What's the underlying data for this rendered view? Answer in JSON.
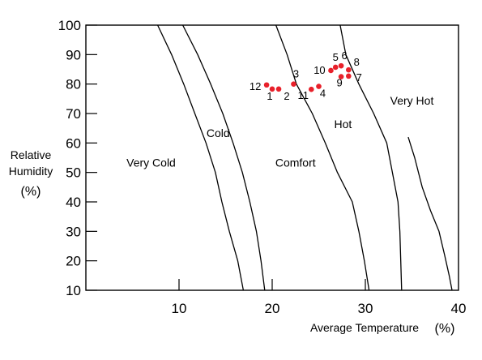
{
  "chart_data": {
    "type": "scatter",
    "xlabel": "Average Temperature",
    "xlabel_unit": "(%)",
    "ylabel_lines": [
      "Relative",
      "Humidity",
      "(%)"
    ],
    "xlim": [
      0,
      40
    ],
    "ylim": [
      10,
      100
    ],
    "x_ticks": [
      10,
      20,
      30,
      40
    ],
    "y_ticks": [
      10,
      20,
      30,
      40,
      50,
      60,
      70,
      80,
      90,
      100
    ],
    "grid": false,
    "points": [
      {
        "label": "1",
        "x": 20.0,
        "y": 78.3
      },
      {
        "label": "2",
        "x": 20.7,
        "y": 78.3
      },
      {
        "label": "3",
        "x": 22.3,
        "y": 80.0
      },
      {
        "label": "4",
        "x": 25.0,
        "y": 79.2
      },
      {
        "label": "5",
        "x": 26.8,
        "y": 85.7
      },
      {
        "label": "6",
        "x": 27.4,
        "y": 86.2
      },
      {
        "label": "7",
        "x": 28.2,
        "y": 82.7
      },
      {
        "label": "8",
        "x": 28.2,
        "y": 84.8
      },
      {
        "label": "9",
        "x": 27.4,
        "y": 82.5
      },
      {
        "label": "10",
        "x": 26.3,
        "y": 84.6
      },
      {
        "label": "11",
        "x": 24.2,
        "y": 78.2
      },
      {
        "label": "12",
        "x": 19.4,
        "y": 79.7
      }
    ],
    "point_color": "#e8202a",
    "boundaries": [
      {
        "name": "very-cold-cold",
        "points": [
          [
            7.7,
            100
          ],
          [
            9.2,
            90
          ],
          [
            10.5,
            80
          ],
          [
            11.7,
            70
          ],
          [
            12.9,
            60
          ],
          [
            13.9,
            50
          ],
          [
            14.6,
            40
          ],
          [
            15.4,
            30
          ],
          [
            16.3,
            20
          ],
          [
            16.9,
            10
          ]
        ]
      },
      {
        "name": "cold-comfort",
        "points": [
          [
            10.4,
            100
          ],
          [
            12.0,
            90
          ],
          [
            13.4,
            80
          ],
          [
            14.7,
            70
          ],
          [
            15.8,
            60
          ],
          [
            16.8,
            50
          ],
          [
            17.6,
            40
          ],
          [
            18.3,
            30
          ],
          [
            18.8,
            20
          ],
          [
            19.2,
            10
          ]
        ]
      },
      {
        "name": "comfort-hot",
        "points": [
          [
            20.4,
            100
          ],
          [
            21.6,
            90
          ],
          [
            22.6,
            80
          ],
          [
            24.3,
            70
          ],
          [
            25.7,
            60
          ],
          [
            27.0,
            50
          ],
          [
            28.6,
            40
          ],
          [
            29.3,
            30
          ],
          [
            29.9,
            20
          ],
          [
            30.4,
            10
          ]
        ]
      },
      {
        "name": "hot-very-hot",
        "points": [
          [
            27.3,
            100
          ],
          [
            27.9,
            90
          ],
          [
            29.3,
            80
          ],
          [
            30.9,
            70
          ],
          [
            32.3,
            60
          ],
          [
            32.9,
            50
          ],
          [
            33.5,
            40
          ],
          [
            33.7,
            30
          ],
          [
            33.8,
            20
          ],
          [
            33.9,
            10
          ]
        ]
      },
      {
        "name": "very-hot-edge",
        "points": [
          [
            34.6,
            62
          ],
          [
            35.3,
            55
          ],
          [
            36.1,
            45
          ],
          [
            37.0,
            37
          ],
          [
            37.9,
            30
          ],
          [
            38.5,
            22
          ],
          [
            39.0,
            15
          ],
          [
            39.3,
            10
          ]
        ]
      }
    ],
    "regions": [
      {
        "label": "Very Cold",
        "x": 7.0,
        "y": 52
      },
      {
        "label": "Cold",
        "x": 14.2,
        "y": 62
      },
      {
        "label": "Comfort",
        "x": 22.5,
        "y": 52
      },
      {
        "label": "Hot",
        "x": 27.6,
        "y": 65
      },
      {
        "label": "Very Hot",
        "x": 35.0,
        "y": 73
      }
    ]
  }
}
